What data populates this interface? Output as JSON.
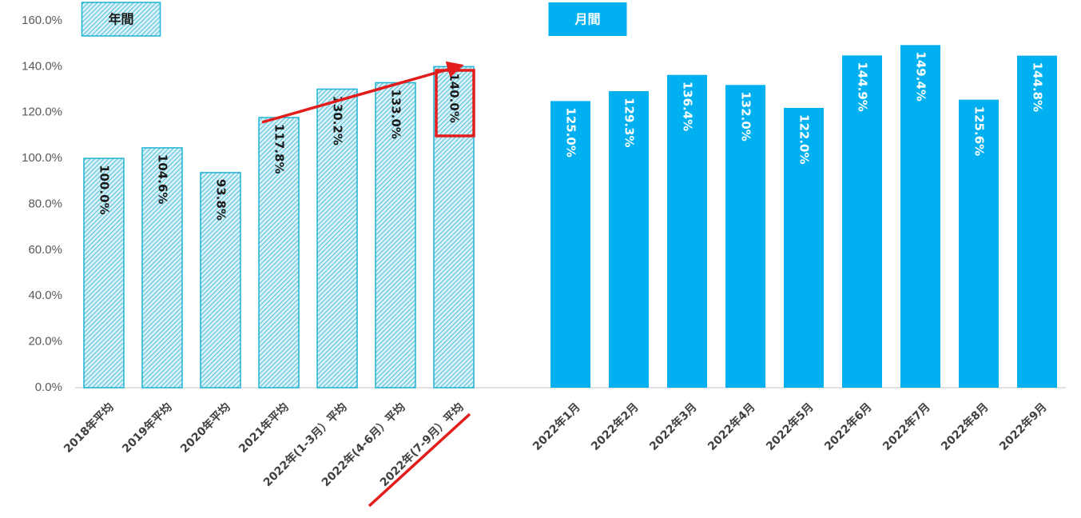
{
  "chart_data": {
    "type": "bar",
    "categories": [
      "2018年平均",
      "2019年平均",
      "2020年平均",
      "2021年平均",
      "2022年(1-3月）平均",
      "2022年(4-6月）平均",
      "2022年(7-9月）平均",
      null,
      "2022年1月",
      "2022年2月",
      "2022年3月",
      "2022年4月",
      "2022年5月",
      "2022年6月",
      "2022年7月",
      "2022年8月",
      "2022年9月"
    ],
    "series": [
      {
        "name": "年間",
        "color": "#1fb3d3",
        "fill": "hatch",
        "values": [
          100.0,
          104.6,
          93.8,
          117.8,
          130.2,
          133.0,
          140.0,
          null,
          null,
          null,
          null,
          null,
          null,
          null,
          null,
          null,
          null
        ],
        "value_labels": [
          "100.0%",
          "104.6%",
          "93.8%",
          "117.8%",
          "130.2%",
          "133.0%",
          "140.0%",
          null,
          null,
          null,
          null,
          null,
          null,
          null,
          null,
          null,
          null
        ]
      },
      {
        "name": "月間",
        "color": "#00b0f0",
        "fill": "solid",
        "values": [
          null,
          null,
          null,
          null,
          null,
          null,
          null,
          null,
          125.0,
          129.3,
          136.4,
          132.0,
          122.0,
          144.9,
          149.4,
          125.6,
          144.8
        ],
        "value_labels": [
          null,
          null,
          null,
          null,
          null,
          null,
          null,
          null,
          "125.0%",
          "129.3%",
          "136.4%",
          "132.0%",
          "122.0%",
          "144.9%",
          "149.4%",
          "125.6%",
          "144.8%"
        ]
      }
    ],
    "ylim": [
      0,
      160
    ],
    "yticks": [
      {
        "value": 0,
        "label": "0.0%"
      },
      {
        "value": 20,
        "label": "20.0%"
      },
      {
        "value": 40,
        "label": "40.0%"
      },
      {
        "value": 60,
        "label": "60.0%"
      },
      {
        "value": 80,
        "label": "80.0%"
      },
      {
        "value": 100,
        "label": "100.0%"
      },
      {
        "value": 120,
        "label": "120.0%"
      },
      {
        "value": 140,
        "label": "140.0%"
      },
      {
        "value": 160,
        "label": "160.0%"
      }
    ]
  }
}
